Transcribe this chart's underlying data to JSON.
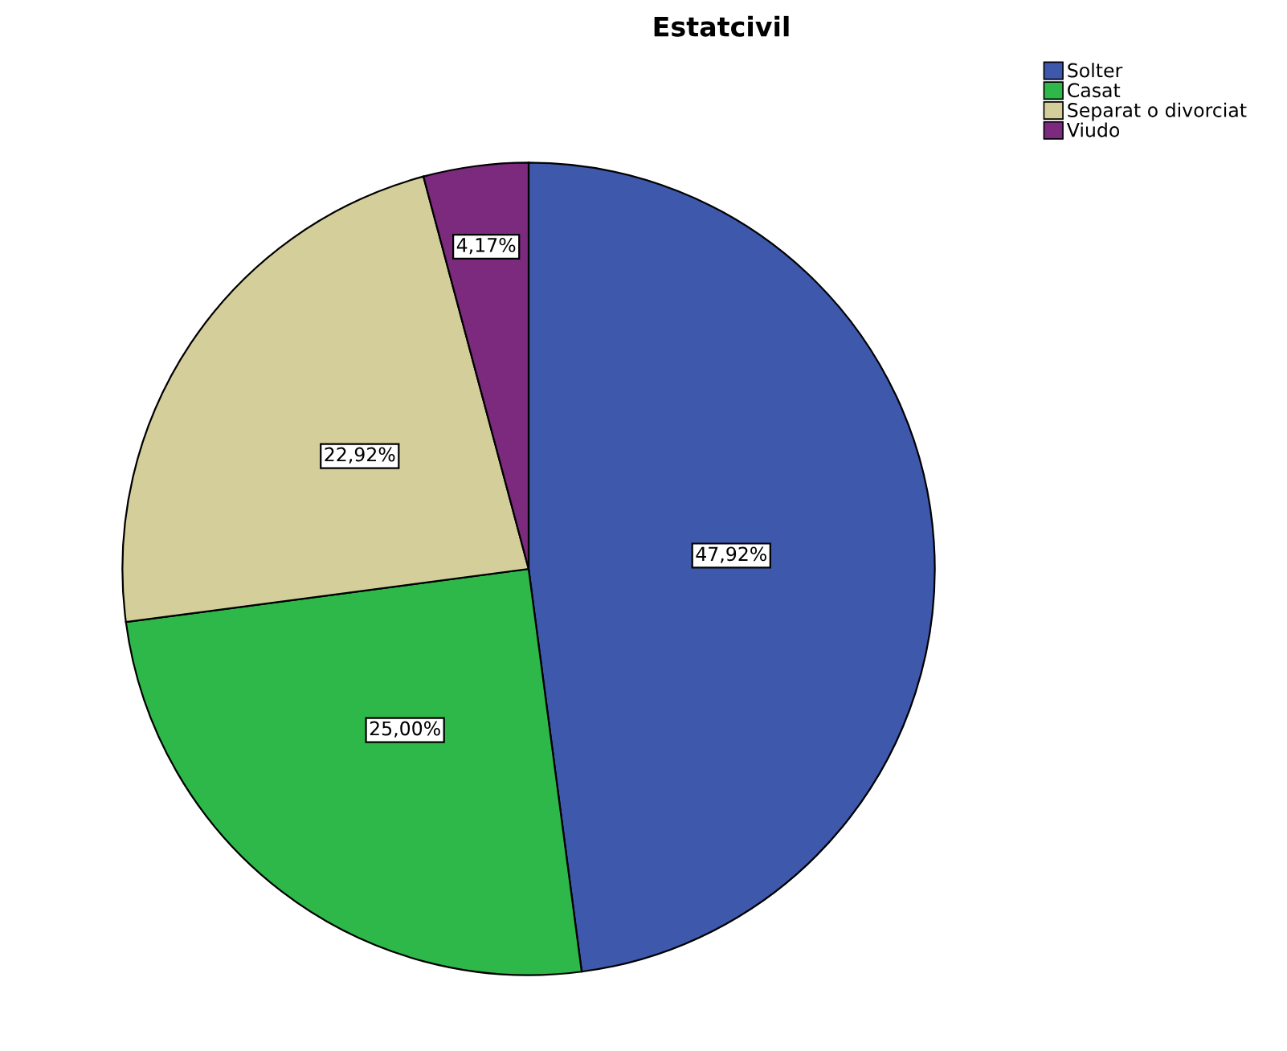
{
  "chart_data": {
    "type": "pie",
    "title": "Estatcivil",
    "categories": [
      "Solter",
      "Casat",
      "Separat o divorciat",
      "Viudo"
    ],
    "values": [
      47.92,
      25.0,
      22.92,
      4.17
    ],
    "value_labels": [
      "47,92%",
      "25,00%",
      "22,92%",
      "4,17%"
    ],
    "colors": [
      "#3e58ac",
      "#2eb84a",
      "#d4cf9a",
      "#7b2a7e"
    ],
    "legend": "top right"
  }
}
